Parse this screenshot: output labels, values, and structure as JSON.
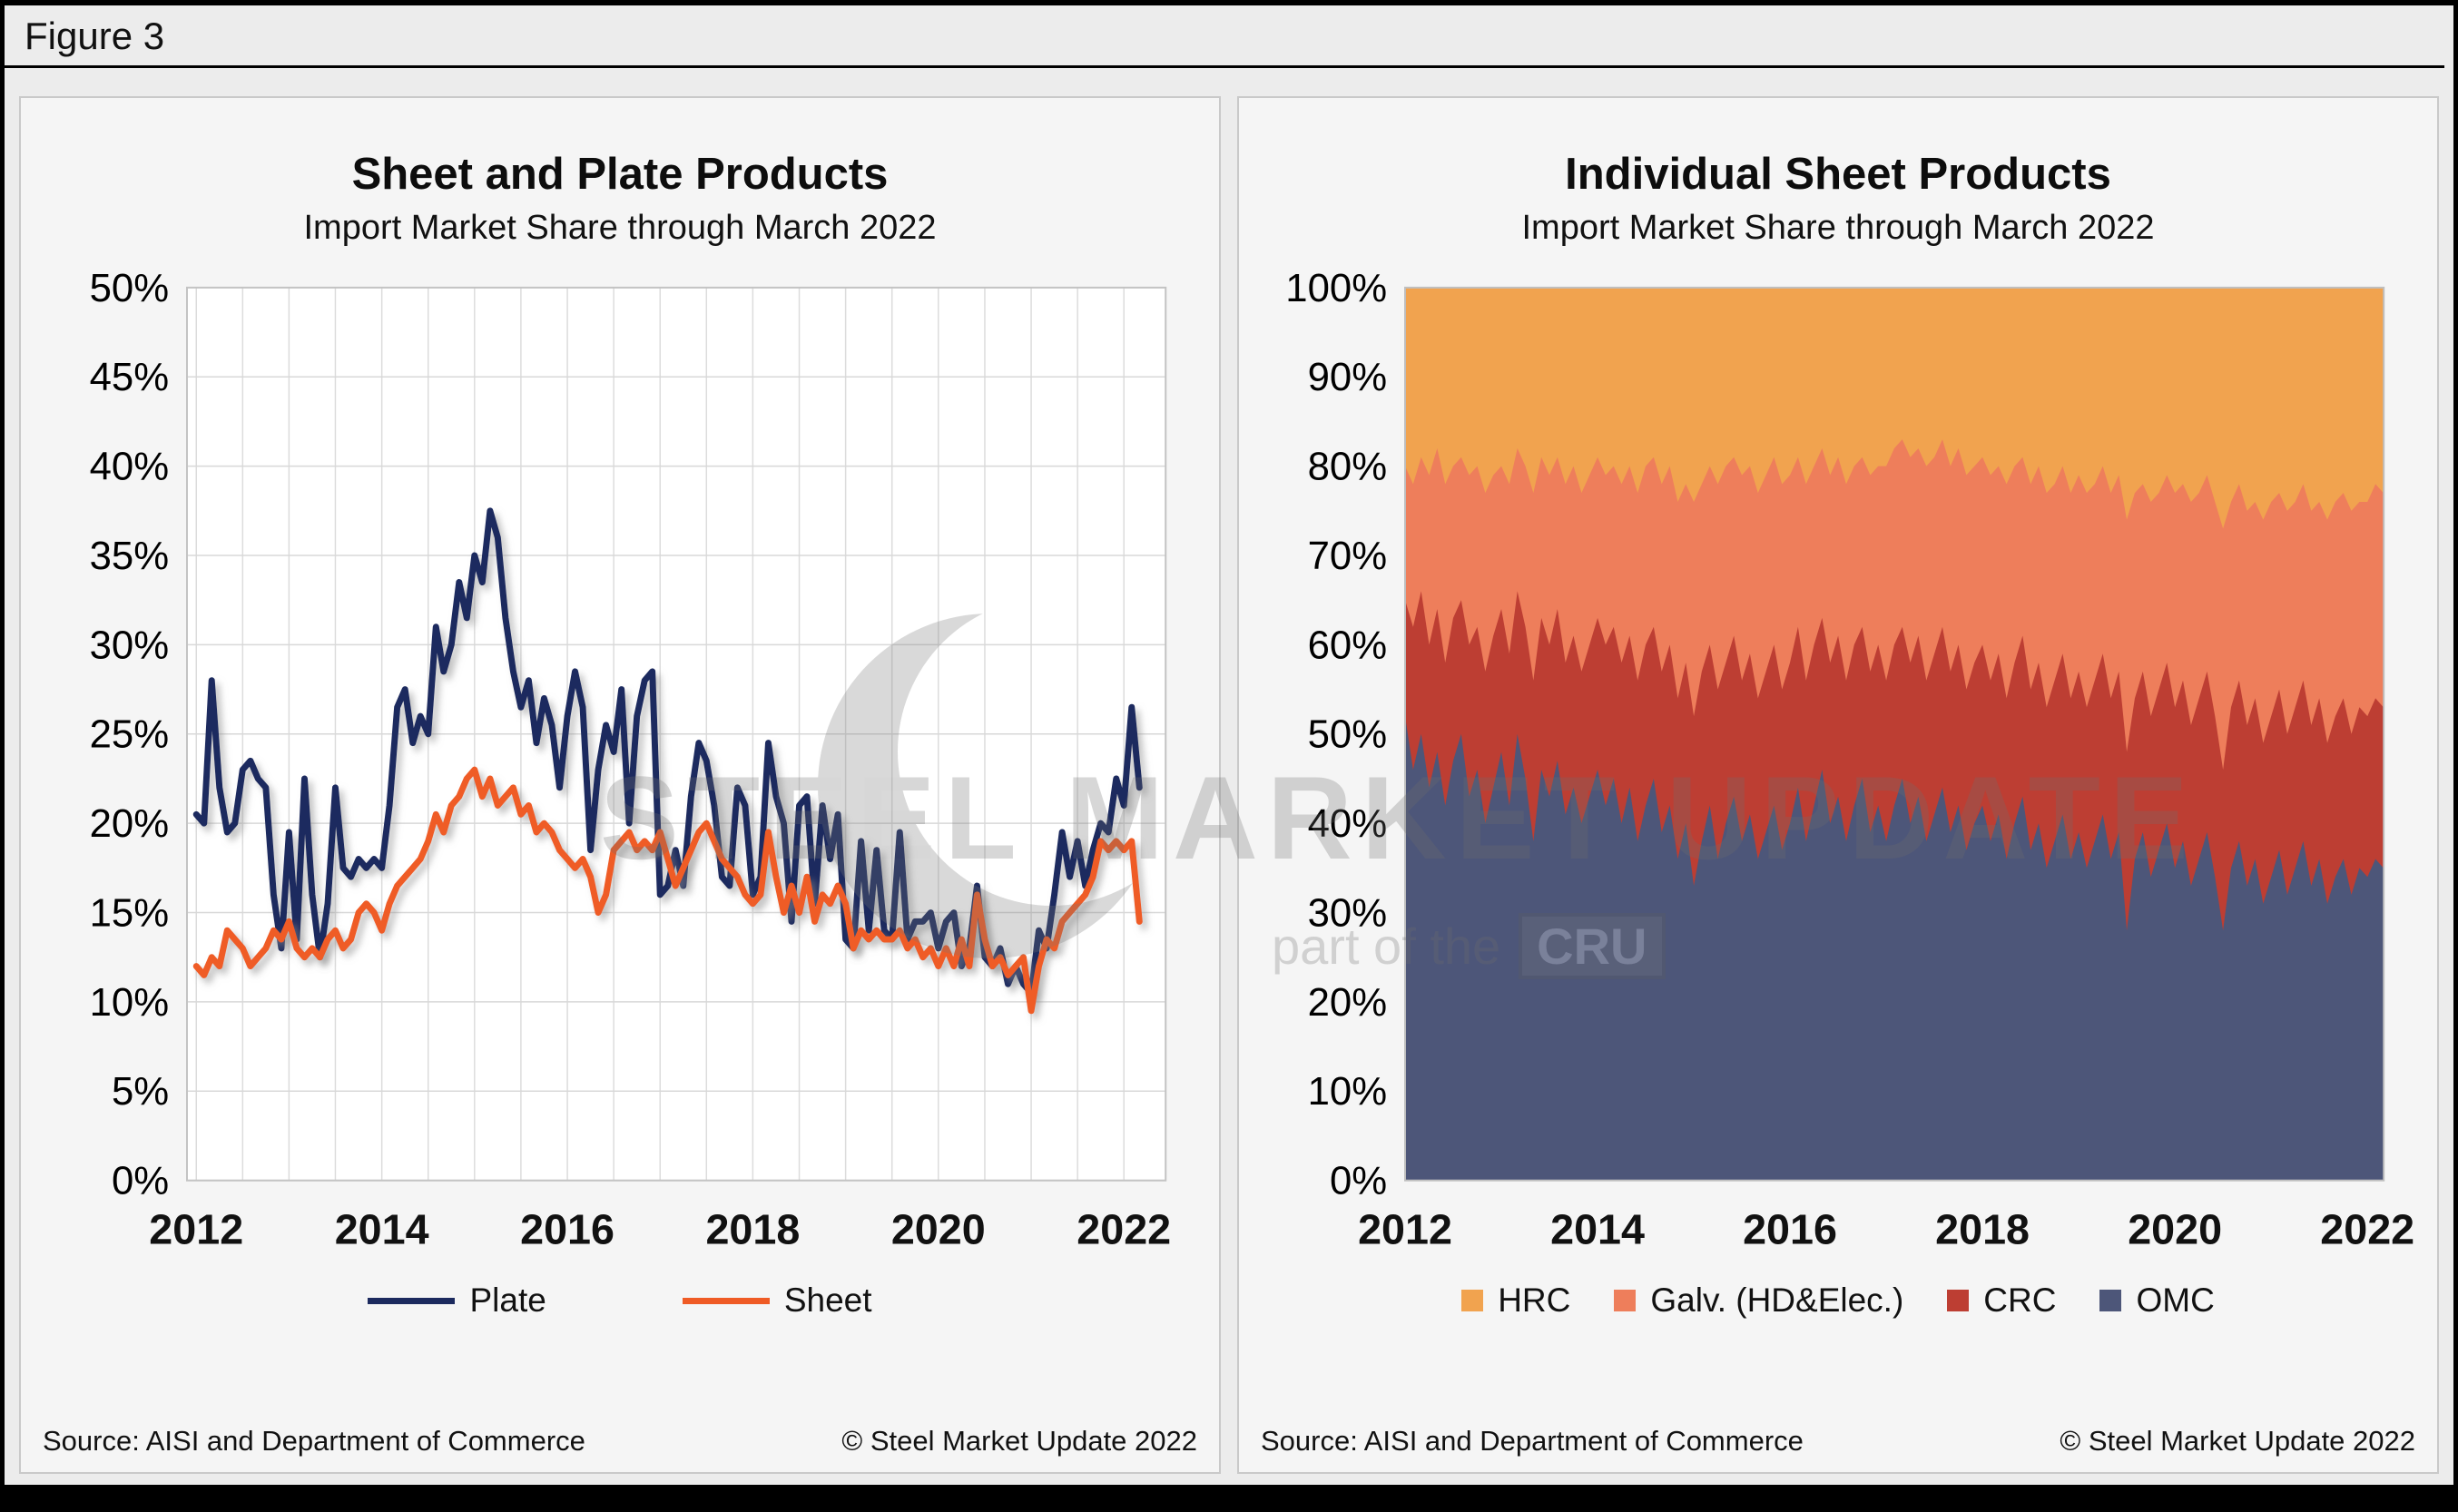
{
  "figure_label": "Figure 3",
  "watermark": {
    "line1": "STEEL MARKET UPDATE",
    "line2": "part of the",
    "badge": "CRU"
  },
  "left_panel": {
    "source": "Source: AISI and Department of Commerce",
    "copyright": "© Steel Market Update 2022"
  },
  "right_panel": {
    "source": "Source: AISI and Department of Commerce",
    "copyright": "© Steel Market Update 2022"
  },
  "chart_data": [
    {
      "type": "line",
      "title": "Sheet and Plate Products",
      "subtitle": "Import Market Share through March 2022",
      "x_start": 2012,
      "x_interval": "monthly",
      "x_end_label": "March 2022",
      "xlim": [
        2011.9,
        2022.45
      ],
      "x_ticks": [
        2012,
        2014,
        2016,
        2018,
        2020,
        2022
      ],
      "ylim": [
        0,
        50
      ],
      "y_tick_step": 5,
      "y_tick_format": "percent",
      "grid": true,
      "legend_position": "bottom",
      "series": [
        {
          "name": "Plate",
          "color": "#1c2a5e",
          "values": [
            20.5,
            20,
            28,
            22,
            19.5,
            20,
            23,
            23.5,
            22.5,
            22,
            16,
            13,
            19.5,
            13.5,
            22.5,
            16,
            12.5,
            15.5,
            22,
            17.5,
            17,
            18,
            17.5,
            18,
            17.5,
            21,
            26.5,
            27.5,
            24.5,
            26,
            25,
            31,
            28.5,
            30,
            33.5,
            31.5,
            35,
            33.5,
            37.5,
            36,
            31.5,
            28.5,
            26.5,
            28,
            24.5,
            27,
            25.5,
            22,
            26,
            28.5,
            26.5,
            18.5,
            23,
            25.5,
            24,
            27.5,
            20,
            26,
            28,
            28.5,
            16,
            16.5,
            18.5,
            16.5,
            21.5,
            24.5,
            23.5,
            21,
            17,
            16.5,
            22,
            21,
            16,
            17,
            24.5,
            21.5,
            20,
            14.5,
            21,
            21.5,
            15.5,
            21,
            18,
            20.5,
            13.5,
            13,
            19,
            14,
            18.5,
            14,
            13.5,
            19.5,
            13.5,
            14.5,
            14.5,
            15,
            13,
            14.5,
            15,
            12,
            13,
            16.5,
            12.5,
            12,
            13,
            11,
            12,
            11,
            10.5,
            14,
            13,
            16,
            19.5,
            17,
            19,
            16.5,
            18.5,
            20,
            19.5,
            22.5,
            21,
            26.5,
            22
          ]
        },
        {
          "name": "Sheet",
          "color": "#ef5b25",
          "values": [
            12,
            11.5,
            12.5,
            12,
            14,
            13.5,
            13,
            12,
            12.5,
            13,
            14,
            13.5,
            14.5,
            13,
            12.5,
            13,
            12.5,
            13.5,
            14,
            13,
            13.5,
            15,
            15.5,
            15,
            14,
            15.5,
            16.5,
            17,
            17.5,
            18,
            19,
            20.5,
            19.5,
            21,
            21.5,
            22.5,
            23,
            21.5,
            22.5,
            21,
            21.5,
            22,
            20.5,
            21,
            19.5,
            20,
            19.5,
            18.5,
            18,
            17.5,
            18,
            17,
            15,
            16,
            18.5,
            19,
            19.5,
            18.5,
            19,
            18.5,
            19.5,
            18,
            16.5,
            17.5,
            18.5,
            19.5,
            20,
            19,
            18,
            17.5,
            17,
            16,
            15.5,
            16,
            19.5,
            17,
            15,
            16.5,
            15,
            17,
            14.5,
            16,
            15.5,
            16.5,
            15.5,
            13,
            14,
            13.5,
            14,
            13.5,
            13.5,
            14,
            13,
            13.5,
            12.5,
            13,
            12,
            13,
            12,
            13.5,
            12,
            16,
            13.5,
            12,
            12.5,
            11.5,
            12,
            12.5,
            9.5,
            12,
            13.5,
            13,
            14.5,
            15,
            15.5,
            16,
            17,
            19,
            18.5,
            19,
            18.5,
            19,
            14.5
          ]
        }
      ]
    },
    {
      "type": "area",
      "stacked": "100%",
      "title": "Individual Sheet Products",
      "subtitle": "Import Market Share through March 2022",
      "x_start": 2012,
      "x_interval": "monthly",
      "x_end_label": "March 2022",
      "xlim": [
        2012,
        2022.17
      ],
      "x_ticks": [
        2012,
        2014,
        2016,
        2018,
        2020,
        2022
      ],
      "ylim": [
        0,
        100
      ],
      "y_tick_step": 10,
      "y_tick_format": "percent",
      "legend_position": "bottom",
      "note": "cum_top arrays are cumulative stack boundaries in percent; HRC fills to 100",
      "series": [
        {
          "name": "OMC",
          "color": "#4d5679",
          "cum_top": [
            52,
            46,
            50,
            44,
            48,
            42,
            47,
            50,
            43,
            46,
            40,
            44,
            48,
            42,
            50,
            45,
            38,
            46,
            43,
            47,
            41,
            44,
            40,
            43,
            46,
            42,
            45,
            40,
            44,
            38,
            42,
            45,
            39,
            42,
            36,
            40,
            33,
            38,
            42,
            36,
            40,
            43,
            38,
            41,
            36,
            39,
            42,
            37,
            40,
            44,
            38,
            42,
            46,
            40,
            43,
            38,
            42,
            45,
            39,
            42,
            38,
            42,
            45,
            40,
            43,
            38,
            41,
            44,
            39,
            42,
            37,
            40,
            42,
            38,
            41,
            36,
            40,
            43,
            37,
            40,
            35,
            38,
            41,
            36,
            39,
            35,
            38,
            41,
            36,
            39,
            28,
            36,
            39,
            34,
            37,
            40,
            35,
            38,
            33,
            36,
            39,
            34,
            28,
            35,
            38,
            33,
            36,
            31,
            34,
            37,
            32,
            35,
            38,
            33,
            36,
            31,
            34,
            36,
            32,
            35,
            34,
            36,
            35
          ]
        },
        {
          "name": "CRC",
          "color": "#bd3e33",
          "cum_top": [
            65,
            62,
            66,
            60,
            64,
            58,
            63,
            65,
            60,
            62,
            57,
            61,
            64,
            59,
            66,
            62,
            56,
            63,
            60,
            64,
            58,
            61,
            57,
            60,
            63,
            60,
            62,
            58,
            61,
            56,
            60,
            62,
            57,
            60,
            54,
            58,
            52,
            57,
            60,
            55,
            58,
            61,
            56,
            59,
            54,
            57,
            60,
            55,
            58,
            62,
            56,
            60,
            63,
            58,
            61,
            56,
            60,
            62,
            57,
            60,
            56,
            60,
            62,
            58,
            61,
            56,
            59,
            62,
            57,
            60,
            55,
            58,
            60,
            56,
            59,
            54,
            58,
            61,
            55,
            58,
            53,
            56,
            59,
            54,
            57,
            53,
            56,
            59,
            54,
            57,
            48,
            54,
            57,
            52,
            55,
            58,
            53,
            56,
            51,
            54,
            57,
            52,
            46,
            53,
            56,
            51,
            54,
            49,
            52,
            55,
            50,
            53,
            56,
            51,
            54,
            49,
            52,
            54,
            50,
            53,
            52,
            54,
            53
          ]
        },
        {
          "name": "Galv. (HD&Elec.)",
          "color": "#ee7e5b",
          "cum_top": [
            80,
            78,
            81,
            79,
            82,
            78,
            80,
            81,
            79,
            80,
            77,
            79,
            80,
            78,
            82,
            80,
            77,
            81,
            79,
            81,
            78,
            80,
            77,
            79,
            81,
            79,
            80,
            78,
            80,
            77,
            80,
            81,
            78,
            80,
            76,
            78,
            76,
            78,
            80,
            78,
            80,
            81,
            79,
            80,
            77,
            79,
            81,
            78,
            79,
            81,
            78,
            80,
            82,
            79,
            81,
            78,
            80,
            81,
            79,
            80,
            80,
            82,
            83,
            81,
            82,
            80,
            81,
            83,
            80,
            82,
            79,
            80,
            81,
            79,
            80,
            78,
            80,
            81,
            78,
            80,
            77,
            78,
            80,
            77,
            79,
            77,
            78,
            80,
            77,
            79,
            74,
            77,
            78,
            76,
            77,
            79,
            77,
            78,
            76,
            77,
            79,
            76,
            73,
            76,
            78,
            75,
            76,
            74,
            76,
            77,
            75,
            76,
            78,
            75,
            76,
            74,
            76,
            77,
            75,
            76,
            76,
            78,
            77
          ]
        },
        {
          "name": "HRC",
          "color": "#f1a34f",
          "cum_top": "fills_to_100"
        }
      ]
    }
  ]
}
